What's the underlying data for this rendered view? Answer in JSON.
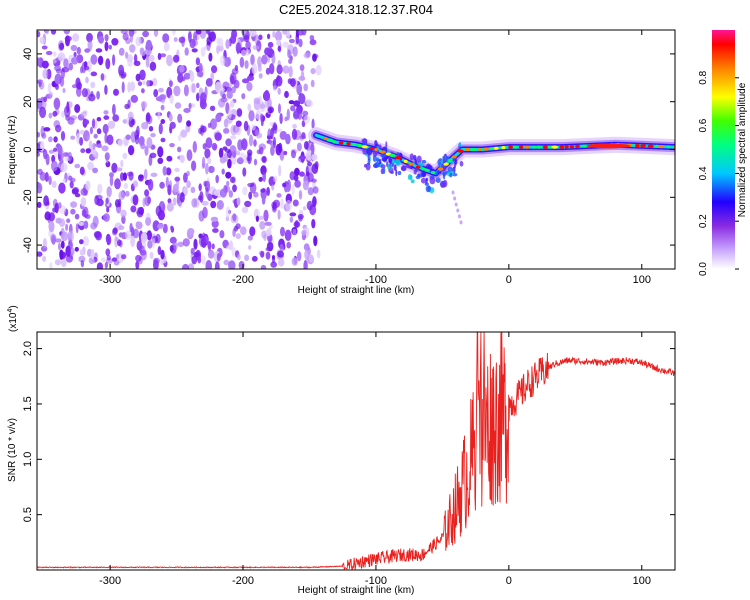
{
  "title": "C2E5.2024.318.12.37.R04",
  "chart_data": [
    {
      "type": "heatmap",
      "title": "C2E5.2024.318.12.37.R04",
      "xlabel": "Height of straight line (km)",
      "ylabel": "Frequency (Hz)",
      "xlim": [
        -355,
        125
      ],
      "ylim": [
        -50,
        50
      ],
      "x_ticks": [
        -300,
        -200,
        -100,
        0,
        100
      ],
      "x_tick_labels": [
        "-300",
        "-200",
        "-100",
        "0",
        "100"
      ],
      "y_ticks": [
        -40,
        -20,
        0,
        20,
        40
      ],
      "y_tick_labels": [
        "-40",
        "-20",
        "0",
        "20",
        "40"
      ],
      "noise_region": {
        "x_start": -355,
        "x_end": -143,
        "description_color": "#7a2ef0"
      },
      "ridge": [
        {
          "x": -145,
          "y": 6
        },
        {
          "x": -130,
          "y": 3
        },
        {
          "x": -115,
          "y": 2
        },
        {
          "x": -100,
          "y": 0
        },
        {
          "x": -85,
          "y": -3
        },
        {
          "x": -70,
          "y": -7
        },
        {
          "x": -55,
          "y": -10
        },
        {
          "x": -45,
          "y": -5
        },
        {
          "x": -35,
          "y": 0
        },
        {
          "x": -20,
          "y": 0
        },
        {
          "x": 0,
          "y": 1
        },
        {
          "x": 40,
          "y": 1
        },
        {
          "x": 80,
          "y": 2
        },
        {
          "x": 125,
          "y": 1
        }
      ],
      "colorbar": {
        "label": "Normalized spectral amplitude",
        "range": [
          0,
          1
        ],
        "ticks": [
          0.0,
          0.2,
          0.4,
          0.6,
          0.8
        ],
        "tick_labels": [
          "0.0",
          "0.2",
          "0.4",
          "0.6",
          "0.8"
        ],
        "colors": [
          "#ffffff",
          "#8a2be2",
          "#0000ff",
          "#00ffff",
          "#00ff00",
          "#ffff00",
          "#ff8000",
          "#ff0000",
          "#ff1493"
        ]
      }
    },
    {
      "type": "line",
      "xlabel": "Height of straight line (km)",
      "ylabel": "SNR (10 * v/v)",
      "y_scale_label": "(x10",
      "y_scale_exponent": "4",
      "y_scale_close": ")",
      "xlim": [
        -355,
        125
      ],
      "ylim": [
        0,
        2.15
      ],
      "x_ticks": [
        -300,
        -200,
        -100,
        0,
        100
      ],
      "x_tick_labels": [
        "-300",
        "-200",
        "-100",
        "0",
        "100"
      ],
      "y_ticks": [
        0.5,
        1.0,
        1.5,
        2.0
      ],
      "y_tick_labels": [
        "0.5",
        "1.0",
        "1.5",
        "2.0"
      ],
      "line_color": "#e8211f",
      "series": [
        {
          "name": "SNR",
          "envelope": [
            {
              "x": -355,
              "y": 0.02
            },
            {
              "x": -150,
              "y": 0.02
            },
            {
              "x": -125,
              "y": 0.03
            },
            {
              "x": -110,
              "y": 0.09
            },
            {
              "x": -95,
              "y": 0.12
            },
            {
              "x": -80,
              "y": 0.15
            },
            {
              "x": -65,
              "y": 0.15
            },
            {
              "x": -50,
              "y": 0.3
            },
            {
              "x": -40,
              "y": 0.6
            },
            {
              "x": -32,
              "y": 0.9
            },
            {
              "x": -25,
              "y": 1.2
            },
            {
              "x": -15,
              "y": 1.4
            },
            {
              "x": -5,
              "y": 1.45
            },
            {
              "x": 5,
              "y": 1.55
            },
            {
              "x": 15,
              "y": 1.7
            },
            {
              "x": 25,
              "y": 1.8
            },
            {
              "x": 35,
              "y": 1.87
            },
            {
              "x": 45,
              "y": 1.9
            },
            {
              "x": 70,
              "y": 1.88
            },
            {
              "x": 90,
              "y": 1.9
            },
            {
              "x": 100,
              "y": 1.88
            },
            {
              "x": 110,
              "y": 1.83
            },
            {
              "x": 125,
              "y": 1.78
            }
          ]
        }
      ]
    }
  ]
}
